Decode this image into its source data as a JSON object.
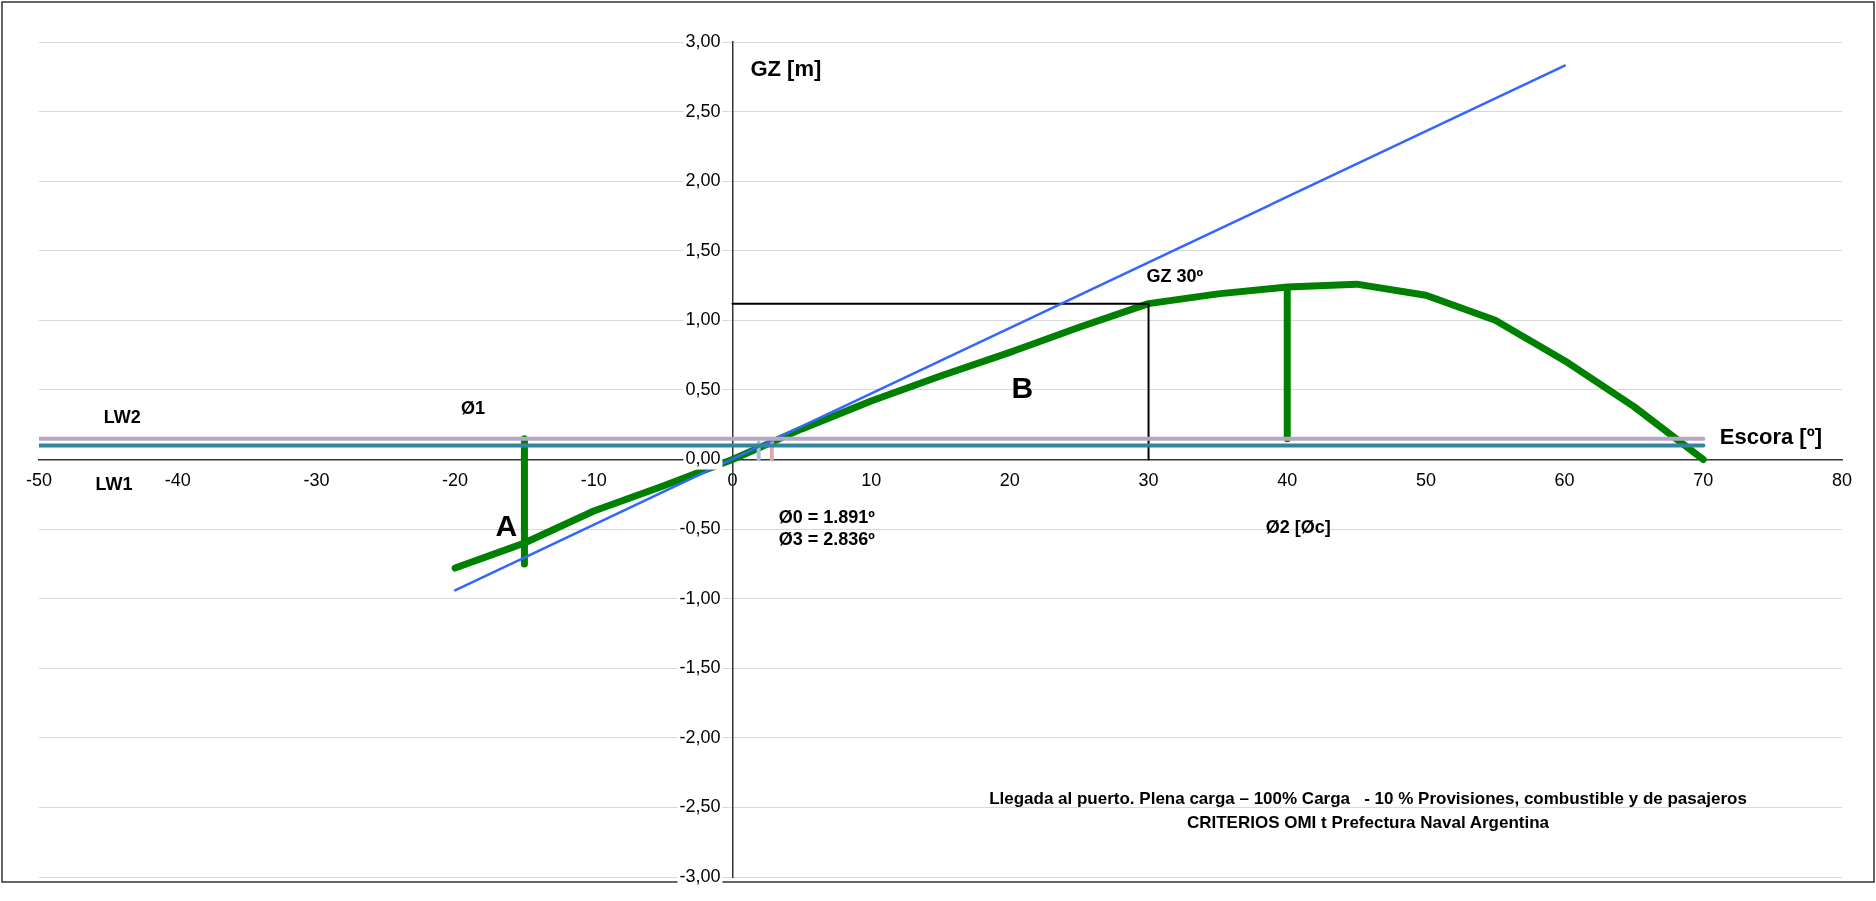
{
  "chart_data": {
    "type": "line",
    "xlabel": "Escora [º]",
    "ylabel": "GZ [m]",
    "xlim": [
      -50,
      80
    ],
    "xticks": [
      -50,
      -40,
      -30,
      -20,
      -10,
      0,
      10,
      20,
      30,
      40,
      50,
      60,
      70,
      80
    ],
    "ylim": [
      -3,
      3
    ],
    "yticks": [
      {
        "value": -3,
        "label": "-3,00"
      },
      {
        "value": -2.5,
        "label": "-2,50"
      },
      {
        "value": -2,
        "label": "-2,00"
      },
      {
        "value": -1.5,
        "label": "-1,50"
      },
      {
        "value": -1,
        "label": "-1,00"
      },
      {
        "value": -0.5,
        "label": "-0,50"
      },
      {
        "value": 0,
        "label": "0,00"
      },
      {
        "value": 0.5,
        "label": "0,50"
      },
      {
        "value": 1,
        "label": "1,00"
      },
      {
        "value": 1.5,
        "label": "1,50"
      },
      {
        "value": 2,
        "label": "2,00"
      },
      {
        "value": 2.5,
        "label": "2,50"
      },
      {
        "value": 3,
        "label": "3,00"
      }
    ],
    "grid": "y",
    "legend": false,
    "marker": "none",
    "line_style": "solid",
    "series": [
      {
        "color": "#b4a7c8",
        "x": [
          -50,
          70
        ],
        "values": [
          0.15,
          0.15
        ]
      },
      {
        "color": "#31859c",
        "x": [
          -50,
          70
        ],
        "values": [
          0.1,
          0.1
        ]
      },
      {
        "color": "#3366ff",
        "x": [
          -20,
          60
        ],
        "values": [
          -0.94,
          2.83
        ]
      },
      {
        "color": "#000000",
        "x": [
          0,
          30,
          30
        ],
        "values": [
          1.12,
          1.12,
          0
        ]
      },
      {
        "color": "#a9bcd9",
        "x": [
          1.891,
          1.891
        ],
        "values": [
          0,
          0.12
        ]
      },
      {
        "color": "#e0a8a8",
        "x": [
          2.836,
          2.836
        ],
        "values": [
          0,
          0.15
        ]
      },
      {
        "color": "#008000",
        "x": [
          -15,
          -15
        ],
        "values": [
          0.15,
          -0.75
        ]
      },
      {
        "color": "#008000",
        "x": [
          40,
          40
        ],
        "values": [
          0.15,
          1.23
        ]
      },
      {
        "color": "#008000",
        "x": [
          -20,
          -15,
          -10,
          -5,
          0,
          5,
          10,
          15,
          20,
          25,
          30,
          35,
          40,
          45,
          50,
          55,
          60,
          65,
          70
        ],
        "values": [
          -0.78,
          -0.6,
          -0.37,
          -0.19,
          0,
          0.22,
          0.42,
          0.6,
          0.77,
          0.95,
          1.12,
          1.19,
          1.24,
          1.26,
          1.18,
          1.0,
          0.71,
          0.38,
          0
        ]
      }
    ],
    "annotations": [
      "LW2",
      "LW1",
      "Ø1",
      "A",
      "B",
      "GZ 30º",
      "Ø2 [Øc]",
      "Ø0 = 1.891º",
      "Ø3 = 2.836º",
      "Llegada al puerto. Plena carga – 100% Carga   - 10 % Provisiones, combustible y de pasajeros",
      "CRITERIOS OMI t Prefectura Naval Argentina"
    ]
  }
}
